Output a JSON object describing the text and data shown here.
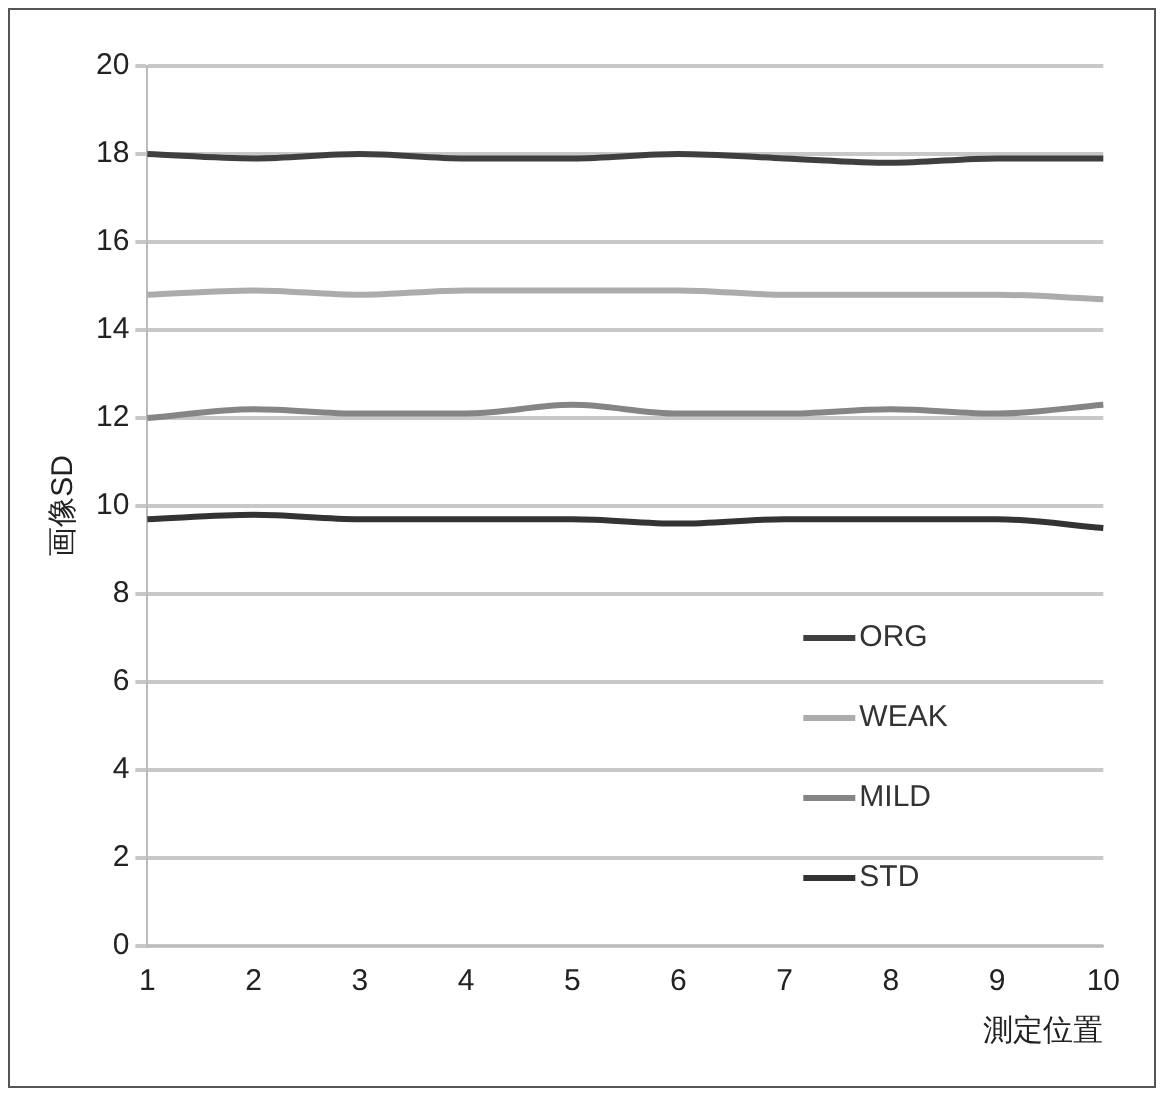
{
  "chart_data": {
    "type": "line",
    "ylabel": "画像SD",
    "xlabel": "測定位置",
    "categories": [
      "1",
      "2",
      "3",
      "4",
      "5",
      "6",
      "7",
      "8",
      "9",
      "10"
    ],
    "series": [
      {
        "name": "ORG",
        "color": "#3f3f3f",
        "values": [
          18.0,
          17.9,
          18.0,
          17.9,
          17.9,
          18.0,
          17.9,
          17.8,
          17.9,
          17.9
        ]
      },
      {
        "name": "WEAK",
        "color": "#acacac",
        "values": [
          14.8,
          14.9,
          14.8,
          14.9,
          14.9,
          14.9,
          14.8,
          14.8,
          14.8,
          14.7
        ]
      },
      {
        "name": "MILD",
        "color": "#858585",
        "values": [
          12.0,
          12.2,
          12.1,
          12.1,
          12.3,
          12.1,
          12.1,
          12.2,
          12.1,
          12.3
        ]
      },
      {
        "name": "STD",
        "color": "#333333",
        "values": [
          9.7,
          9.8,
          9.7,
          9.7,
          9.7,
          9.6,
          9.7,
          9.7,
          9.7,
          9.5
        ]
      }
    ],
    "ylim": [
      0,
      20
    ],
    "yticks": [
      0,
      2,
      4,
      6,
      8,
      10,
      12,
      14,
      16,
      18,
      20
    ],
    "grid": "y",
    "legend": "bottom right",
    "marker": "none",
    "line_style": "solid"
  }
}
